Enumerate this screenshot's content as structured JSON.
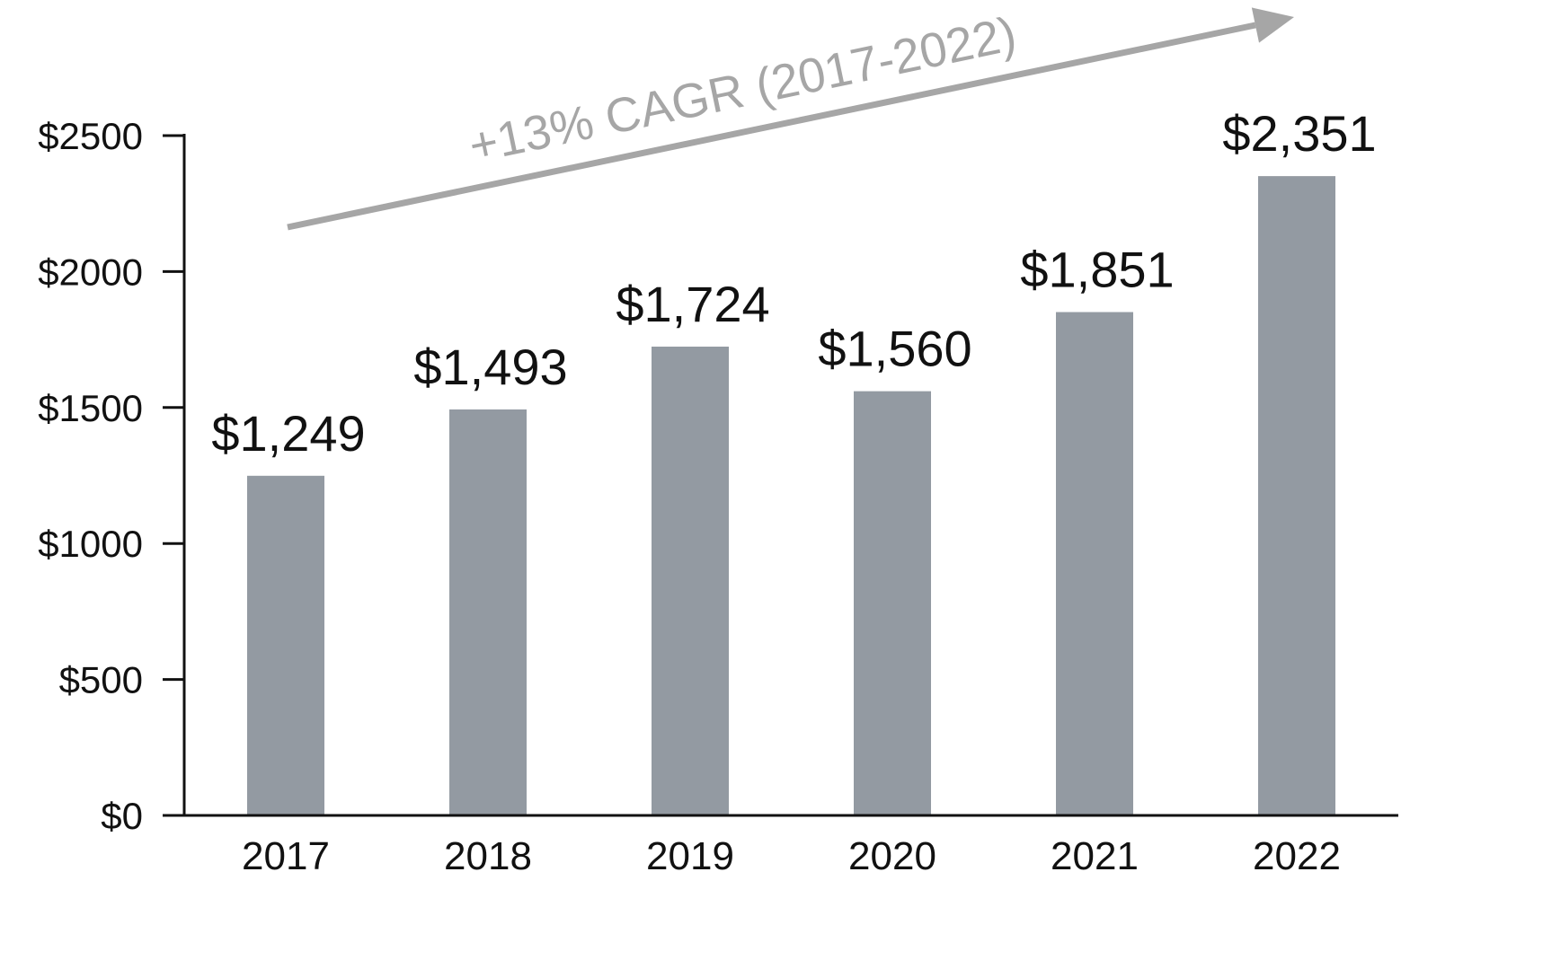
{
  "chart_data": {
    "type": "bar",
    "title": "",
    "xlabel": "",
    "ylabel": "",
    "categories": [
      "2017",
      "2018",
      "2019",
      "2020",
      "2021",
      "2022"
    ],
    "values": [
      1249,
      1493,
      1724,
      1560,
      1851,
      2351
    ],
    "value_labels": [
      "$1,249",
      "$1,493",
      "$1,724",
      "$1,560",
      "$1,851",
      "$2,351"
    ],
    "ylim": [
      0,
      2500
    ],
    "yticks": [
      0,
      500,
      1000,
      1500,
      2000,
      2500
    ],
    "ytick_labels": [
      "$0",
      "$500",
      "$1000",
      "$1500",
      "$2000",
      "$2500"
    ],
    "grid": false,
    "annotation": {
      "text": "+13% CAGR (2017-2022)",
      "type": "trend-arrow",
      "from_category": "2017",
      "to_category": "2022"
    }
  },
  "colors": {
    "bar": "#939aa2",
    "axis": "#111111",
    "text": "#111111",
    "annotation": "#a6a6a6"
  }
}
